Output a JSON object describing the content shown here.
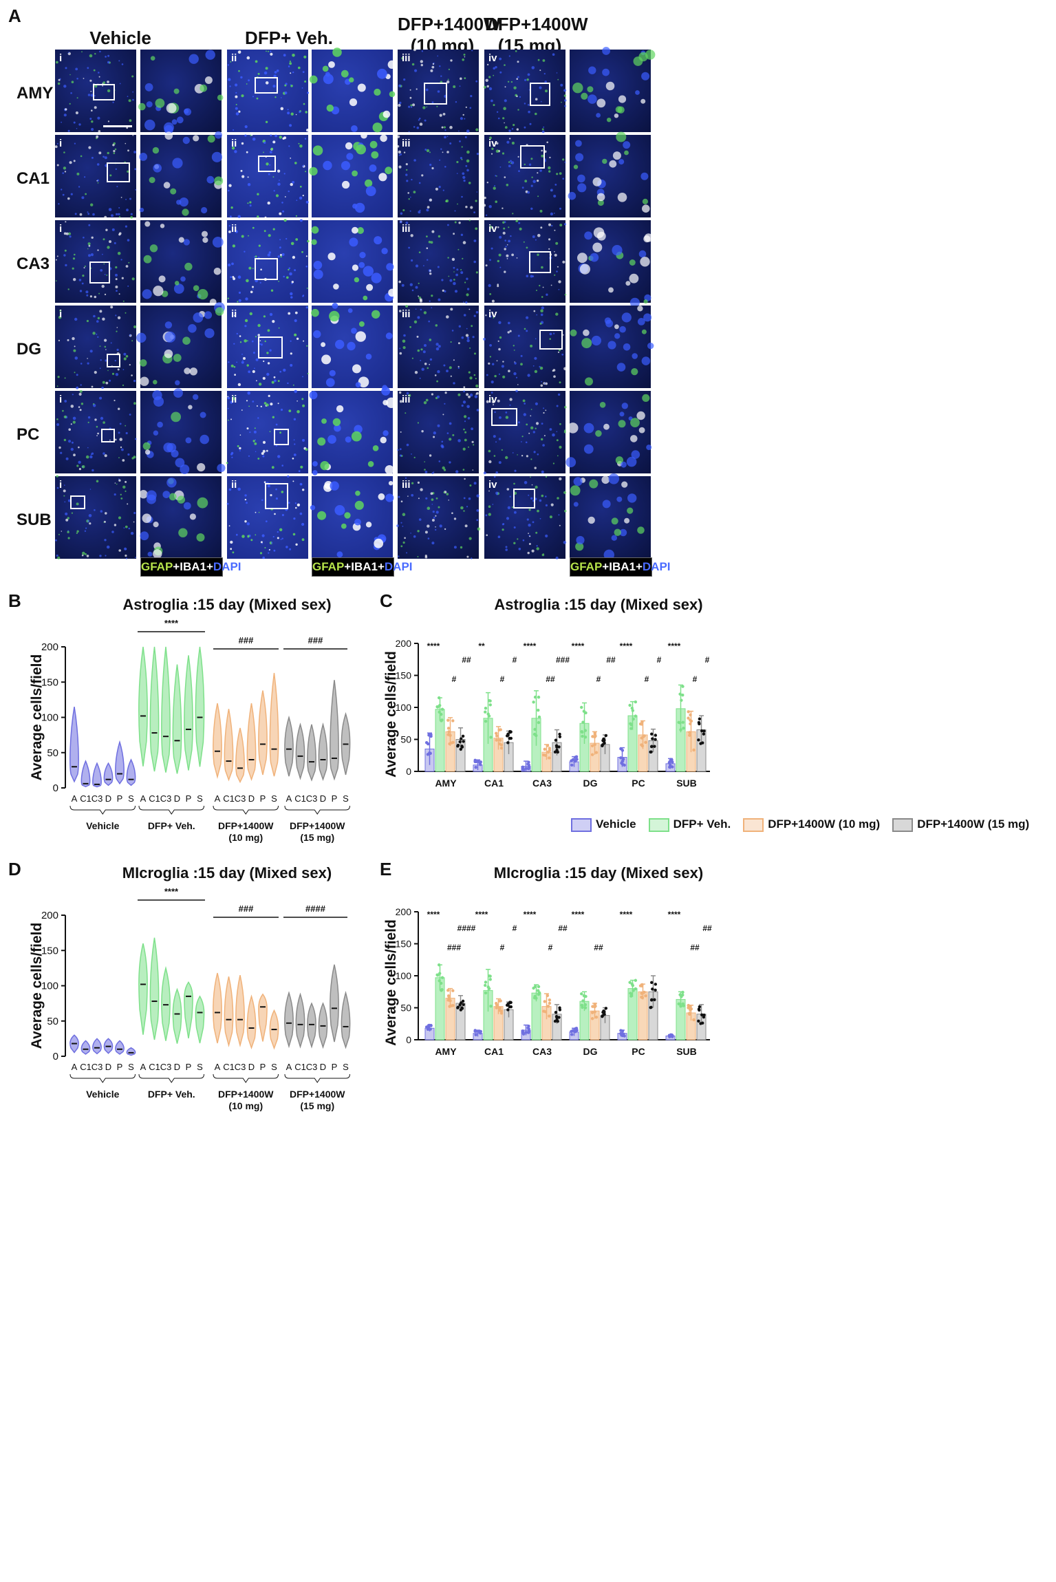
{
  "panel_labels": {
    "a": "A",
    "b": "B",
    "c": "C",
    "d": "D",
    "e": "E"
  },
  "groups": [
    {
      "label": "Vehicle",
      "color": "#6f6fe0"
    },
    {
      "label": "DFP+ Veh.",
      "color": "#7ee08a"
    },
    {
      "label": "DFP+1400W\n(10 mg)",
      "color": "#f0b27a"
    },
    {
      "label": "DFP+1400W\n(15 mg)",
      "color": "#8a8a8a"
    }
  ],
  "regions": [
    "AMY",
    "CA1",
    "CA3",
    "DG",
    "PC",
    "SUB"
  ],
  "roman": [
    "i",
    "ii",
    "iii",
    "iv"
  ],
  "stain_label": {
    "gfap": "GFAP",
    "iba1": "+IBA1+",
    "dapi": "DAPI"
  },
  "panel_b": {
    "title": "Astroglia :15 day (Mixed sex)",
    "ylabel": "Average cells/field",
    "yticks": [
      "0",
      "50",
      "100",
      "150",
      "200"
    ],
    "ylim": [
      0,
      200
    ],
    "xticks": [
      "A",
      "C1",
      "C3",
      "D",
      "P",
      "S"
    ],
    "group_names": [
      "Vehicle",
      "DFP+ Veh.",
      "DFP+1400W\n(10 mg)",
      "DFP+1400W\n(15 mg)"
    ],
    "sig": [
      "****",
      "###",
      "###"
    ]
  },
  "panel_d": {
    "title": "MIcroglia :15 day (Mixed sex)",
    "ylabel": "Average cells/field",
    "yticks": [
      "0",
      "50",
      "100",
      "150",
      "200"
    ],
    "ylim": [
      0,
      200
    ],
    "xticks": [
      "A",
      "C1",
      "C3",
      "D",
      "P",
      "S"
    ],
    "group_names": [
      "Vehicle",
      "DFP+ Veh.",
      "DFP+1400W\n(10 mg)",
      "DFP+1400W\n(15 mg)"
    ],
    "sig": [
      "****",
      "###",
      "####"
    ]
  },
  "panel_c": {
    "title": "Astroglia :15 day (Mixed sex)",
    "ylabel": "Average cells/field",
    "yticks": [
      "0",
      "50",
      "100",
      "150",
      "200"
    ]
  },
  "panel_e": {
    "title": "MIcroglia :15 day (Mixed sex)",
    "ylabel": "Average cells/field",
    "yticks": [
      "0",
      "50",
      "100",
      "150",
      "200"
    ]
  },
  "legend": [
    {
      "label": "Vehicle",
      "color": "#6f6fe0"
    },
    {
      "label": "DFP+ Veh.",
      "color": "#7ee08a"
    },
    {
      "label": "DFP+1400W (10 mg)",
      "color": "#f0b27a"
    },
    {
      "label": "DFP+1400W (15 mg)",
      "color": "#8a8a8a"
    }
  ],
  "chart_data": [
    {
      "type": "violin",
      "title": "Astroglia :15 day (Mixed sex)",
      "ylabel": "Average cells/field",
      "ylim": [
        0,
        200
      ],
      "categories": [
        "A",
        "C1",
        "C3",
        "D",
        "P",
        "S"
      ],
      "series": [
        {
          "name": "Vehicle",
          "medians": [
            30,
            6,
            5,
            12,
            20,
            12
          ],
          "max": [
            115,
            38,
            35,
            35,
            65,
            40
          ]
        },
        {
          "name": "DFP+ Veh.",
          "medians": [
            102,
            78,
            73,
            67,
            83,
            100
          ],
          "max": [
            200,
            200,
            200,
            175,
            188,
            200
          ]
        },
        {
          "name": "DFP+1400W\n(10 mg)",
          "medians": [
            52,
            38,
            28,
            40,
            62,
            55
          ],
          "max": [
            120,
            112,
            85,
            120,
            138,
            163
          ]
        },
        {
          "name": "DFP+1400W\n(15 mg)",
          "medians": [
            55,
            45,
            37,
            40,
            42,
            62
          ],
          "max": [
            100,
            90,
            90,
            90,
            153,
            105
          ]
        }
      ],
      "annotations": [
        "****",
        "###",
        "###"
      ]
    },
    {
      "type": "bar",
      "title": "Astroglia :15 day (Mixed sex)",
      "ylabel": "Average cells/field",
      "ylim": [
        0,
        200
      ],
      "categories": [
        "AMY",
        "CA1",
        "CA3",
        "DG",
        "PC",
        "SUB"
      ],
      "series": [
        {
          "name": "Vehicle",
          "values": [
            35,
            10,
            8,
            15,
            22,
            12
          ],
          "err": [
            25,
            8,
            8,
            8,
            15,
            8
          ]
        },
        {
          "name": "DFP+ Veh.",
          "values": [
            97,
            83,
            83,
            75,
            87,
            98
          ],
          "err": [
            18,
            40,
            43,
            32,
            22,
            37
          ]
        },
        {
          "name": "DFP+1400W (10 mg)",
          "values": [
            62,
            52,
            30,
            44,
            57,
            62
          ],
          "err": [
            22,
            18,
            12,
            18,
            22,
            32
          ]
        },
        {
          "name": "DFP+1400W (15 mg)",
          "values": [
            50,
            45,
            45,
            42,
            48,
            65
          ],
          "err": [
            18,
            18,
            20,
            15,
            18,
            22
          ]
        }
      ],
      "annotations": {
        "AMY": [
          "****",
          "#",
          "##"
        ],
        "CA1": [
          "**",
          "#",
          "#"
        ],
        "CA3": [
          "****",
          "##",
          "###"
        ],
        "DG": [
          "****",
          "#",
          "##"
        ],
        "PC": [
          "****",
          "#",
          "#"
        ],
        "SUB": [
          "****",
          "#",
          "#"
        ]
      }
    },
    {
      "type": "violin",
      "title": "MIcroglia :15 day (Mixed sex)",
      "ylabel": "Average cells/field",
      "ylim": [
        0,
        200
      ],
      "categories": [
        "A",
        "C1",
        "C3",
        "D",
        "P",
        "S"
      ],
      "series": [
        {
          "name": "Vehicle",
          "medians": [
            18,
            10,
            12,
            14,
            10,
            5
          ],
          "max": [
            30,
            22,
            25,
            25,
            22,
            12
          ]
        },
        {
          "name": "DFP+ Veh.",
          "medians": [
            102,
            78,
            73,
            60,
            85,
            62
          ],
          "max": [
            160,
            168,
            125,
            95,
            105,
            85
          ]
        },
        {
          "name": "DFP+1400W\n(10 mg)",
          "medians": [
            62,
            52,
            52,
            40,
            70,
            38
          ],
          "max": [
            118,
            113,
            115,
            85,
            88,
            65
          ]
        },
        {
          "name": "DFP+1400W\n(15 mg)",
          "medians": [
            47,
            45,
            45,
            43,
            68,
            42
          ],
          "max": [
            90,
            88,
            75,
            75,
            130,
            90
          ]
        }
      ],
      "annotations": [
        "****",
        "###",
        "####"
      ]
    },
    {
      "type": "bar",
      "title": "MIcroglia :15 day (Mixed sex)",
      "ylabel": "Average cells/field",
      "ylim": [
        0,
        200
      ],
      "categories": [
        "AMY",
        "CA1",
        "CA3",
        "DG",
        "PC",
        "SUB"
      ],
      "series": [
        {
          "name": "Vehicle",
          "values": [
            18,
            10,
            15,
            12,
            10,
            6
          ],
          "err": [
            5,
            5,
            8,
            6,
            5,
            2
          ]
        },
        {
          "name": "DFP+ Veh.",
          "values": [
            97,
            77,
            73,
            60,
            80,
            63
          ],
          "err": [
            20,
            33,
            13,
            15,
            13,
            12
          ]
        },
        {
          "name": "DFP+1400W (10 mg)",
          "values": [
            65,
            52,
            52,
            45,
            75,
            42
          ],
          "err": [
            15,
            12,
            20,
            12,
            12,
            12
          ]
        },
        {
          "name": "DFP+1400W (15 mg)",
          "values": [
            57,
            47,
            40,
            38,
            75,
            40
          ],
          "err": [
            12,
            12,
            15,
            12,
            25,
            15
          ]
        }
      ],
      "annotations": {
        "AMY": [
          "****",
          "###",
          "####"
        ],
        "CA1": [
          "****",
          "#",
          "#"
        ],
        "CA3": [
          "****",
          "#",
          "##"
        ],
        "DG": [
          "****",
          "##"
        ],
        "PC": [
          "****"
        ],
        "SUB": [
          "****",
          "##",
          "##"
        ]
      }
    }
  ]
}
